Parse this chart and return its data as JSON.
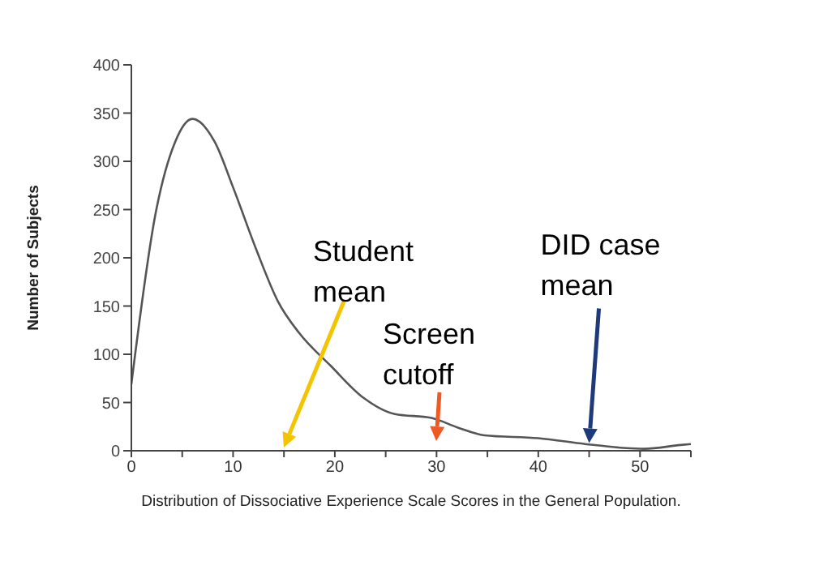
{
  "chart_data": {
    "type": "line",
    "xlabel": "Distribution of Dissociative Experience Scale Scores in the General Population.",
    "ylabel": "Number of Subjects",
    "x": [
      0,
      2.4,
      4.3,
      6,
      8.2,
      10,
      12.3,
      14.4,
      16.5,
      19.6,
      22.8,
      25.9,
      29.5,
      32.1,
      34.7,
      40,
      44.6,
      48.3,
      50.4,
      54,
      55
    ],
    "series": [
      {
        "color": "#555555",
        "values": [
          69,
          247,
          320,
          344,
          320,
          273,
          208,
          155,
          122,
          88,
          55,
          38,
          34,
          24,
          16,
          13,
          7,
          3,
          2,
          6,
          7
        ]
      }
    ],
    "xlim": [
      0,
      55
    ],
    "xticks": [
      0,
      {
        "value": 5,
        "label": null
      },
      10,
      {
        "value": 15,
        "label": null
      },
      20,
      {
        "value": 25,
        "label": null
      },
      30,
      {
        "value": 35,
        "label": null
      },
      40,
      {
        "value": 45,
        "label": null
      },
      50,
      {
        "value": 55,
        "label": null
      }
    ],
    "ylim": [
      0,
      400
    ],
    "yticks": [
      0,
      50,
      100,
      150,
      200,
      250,
      300,
      350,
      400
    ],
    "grid": false,
    "legend": false,
    "marker": "none",
    "line_style": "solid",
    "annotations": [
      "Student mean",
      "Screen cutoff",
      {
        "text": "DID case mean",
        "x": 45,
        "y": 8
      }
    ]
  }
}
